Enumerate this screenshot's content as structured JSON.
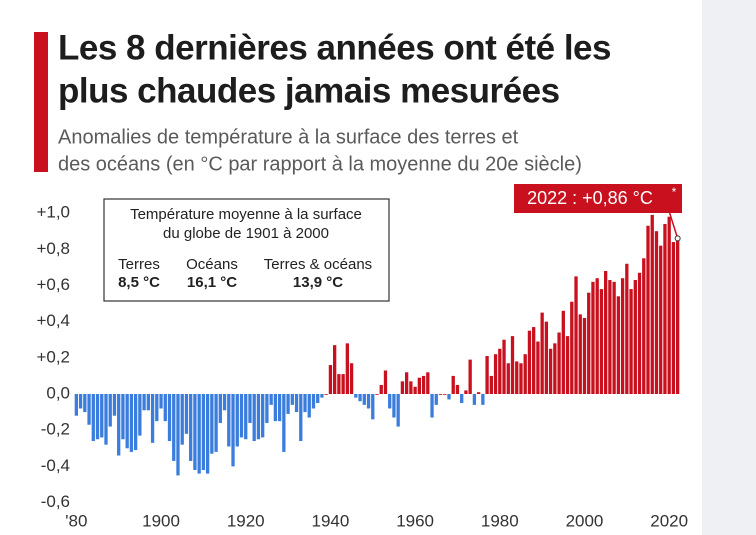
{
  "chart_data": {
    "type": "bar",
    "title": [
      "Les 8 dernières années ont été les",
      "plus chaudes jamais mesurées"
    ],
    "subtitle": [
      "Anomalies de température à la surface des terres et",
      "des océans (en °C par rapport à la moyenne du 20e siècle)"
    ],
    "annotation": "2022 : +0,86 °C",
    "annotation_note": "*",
    "info_box": {
      "title": [
        "Température moyenne à la surface",
        "du globe de 1901 à 2000"
      ],
      "items": [
        {
          "label": "Terres",
          "value": "8,5 °C"
        },
        {
          "label": "Océans",
          "value": "16,1 °C"
        },
        {
          "label": "Terres & océans",
          "value": "13,9 °C"
        }
      ]
    },
    "x": [
      1880,
      1881,
      1882,
      1883,
      1884,
      1885,
      1886,
      1887,
      1888,
      1889,
      1890,
      1891,
      1892,
      1893,
      1894,
      1895,
      1896,
      1897,
      1898,
      1899,
      1900,
      1901,
      1902,
      1903,
      1904,
      1905,
      1906,
      1907,
      1908,
      1909,
      1910,
      1911,
      1912,
      1913,
      1914,
      1915,
      1916,
      1917,
      1918,
      1919,
      1920,
      1921,
      1922,
      1923,
      1924,
      1925,
      1926,
      1927,
      1928,
      1929,
      1930,
      1931,
      1932,
      1933,
      1934,
      1935,
      1936,
      1937,
      1938,
      1939,
      1940,
      1941,
      1942,
      1943,
      1944,
      1945,
      1946,
      1947,
      1948,
      1949,
      1950,
      1951,
      1952,
      1953,
      1954,
      1955,
      1956,
      1957,
      1958,
      1959,
      1960,
      1961,
      1962,
      1963,
      1964,
      1965,
      1966,
      1967,
      1968,
      1969,
      1970,
      1971,
      1972,
      1973,
      1974,
      1975,
      1976,
      1977,
      1978,
      1979,
      1980,
      1981,
      1982,
      1983,
      1984,
      1985,
      1986,
      1987,
      1988,
      1989,
      1990,
      1991,
      1992,
      1993,
      1994,
      1995,
      1996,
      1997,
      1998,
      1999,
      2000,
      2001,
      2002,
      2003,
      2004,
      2005,
      2006,
      2007,
      2008,
      2009,
      2010,
      2011,
      2012,
      2013,
      2014,
      2015,
      2016,
      2017,
      2018,
      2019,
      2020,
      2021,
      2022
    ],
    "values": [
      -0.12,
      -0.08,
      -0.1,
      -0.17,
      -0.26,
      -0.25,
      -0.24,
      -0.28,
      -0.18,
      -0.12,
      -0.34,
      -0.25,
      -0.3,
      -0.32,
      -0.31,
      -0.23,
      -0.09,
      -0.09,
      -0.27,
      -0.15,
      -0.08,
      -0.15,
      -0.26,
      -0.37,
      -0.45,
      -0.28,
      -0.22,
      -0.37,
      -0.42,
      -0.44,
      -0.42,
      -0.44,
      -0.33,
      -0.32,
      -0.16,
      -0.09,
      -0.29,
      -0.4,
      -0.29,
      -0.24,
      -0.25,
      -0.16,
      -0.26,
      -0.25,
      -0.24,
      -0.16,
      -0.06,
      -0.15,
      -0.15,
      -0.32,
      -0.11,
      -0.06,
      -0.1,
      -0.26,
      -0.1,
      -0.13,
      -0.08,
      -0.05,
      -0.02,
      0.0,
      0.16,
      0.27,
      0.11,
      0.11,
      0.28,
      0.17,
      -0.02,
      -0.04,
      -0.06,
      -0.08,
      -0.14,
      0.0,
      0.05,
      0.13,
      -0.08,
      -0.13,
      -0.18,
      0.07,
      0.12,
      0.07,
      0.04,
      0.09,
      0.1,
      0.12,
      -0.13,
      -0.06,
      0.0,
      0.0,
      -0.03,
      0.1,
      0.05,
      -0.05,
      0.02,
      0.19,
      -0.06,
      0.01,
      -0.06,
      0.21,
      0.1,
      0.22,
      0.25,
      0.3,
      0.17,
      0.32,
      0.18,
      0.17,
      0.22,
      0.35,
      0.37,
      0.29,
      0.45,
      0.4,
      0.25,
      0.28,
      0.34,
      0.46,
      0.32,
      0.51,
      0.65,
      0.44,
      0.42,
      0.56,
      0.62,
      0.64,
      0.58,
      0.68,
      0.63,
      0.62,
      0.54,
      0.64,
      0.72,
      0.58,
      0.63,
      0.67,
      0.75,
      0.93,
      0.99,
      0.9,
      0.82,
      0.94,
      0.98,
      0.84,
      0.86
    ],
    "color_positive": "#c8101f",
    "color_negative": "#3b7ddd",
    "xlim": [
      1878.5,
      2023.5
    ],
    "xticks": [
      {
        "value": 1880,
        "label": "'80"
      },
      1900,
      1920,
      1940,
      1960,
      1980,
      2000,
      2020
    ],
    "ylim": [
      -0.65,
      1.1
    ],
    "yticks": [
      {
        "value": 1.0,
        "label": "+1,0"
      },
      {
        "value": 0.8,
        "label": "+0,8"
      },
      {
        "value": 0.6,
        "label": "+0,6"
      },
      {
        "value": 0.4,
        "label": "+0,4"
      },
      {
        "value": 0.2,
        "label": "+0,2"
      },
      {
        "value": 0,
        "label": "0,0"
      },
      {
        "value": -0.2,
        "label": "-0,2"
      },
      {
        "value": -0.4,
        "label": "-0,4"
      },
      {
        "value": -0.6,
        "label": "-0,6"
      }
    ],
    "grid": false
  }
}
